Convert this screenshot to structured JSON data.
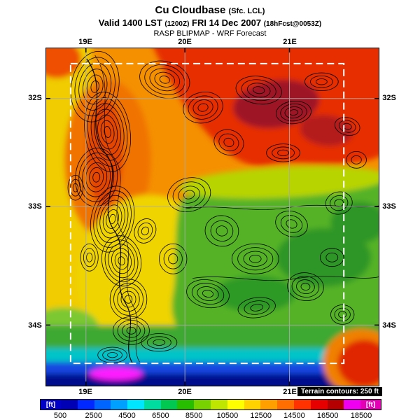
{
  "header": {
    "title_main": "Cu Cloudbase",
    "title_paren": "(Sfc. LCL)",
    "valid_prefix": "Valid 1400 LST",
    "valid_z": "(1200Z)",
    "valid_date": "FRI 14 Dec 2007",
    "valid_fcst": "(18hFcst@0053Z)",
    "model_line": "RASP BLIPMAP - WRF Forecast"
  },
  "map": {
    "lon_labels": [
      "19E",
      "20E",
      "21E"
    ],
    "lat_labels": [
      "32S",
      "33S",
      "34S"
    ],
    "terrain_note": "Terrain contours: 250 ft"
  },
  "colorbar": {
    "unit_label": "[ft]",
    "tick_labels": [
      "500",
      "2500",
      "4500",
      "6500",
      "8500",
      "10500",
      "12500",
      "14500",
      "16500",
      "18500"
    ],
    "left_cap_color": "#0000C8",
    "right_cap_color": "#E400B4",
    "cell_colors": [
      "#0000B4",
      "#0028FF",
      "#0064FF",
      "#00A0FF",
      "#00E6FF",
      "#00DCA0",
      "#00C850",
      "#28BE00",
      "#78D200",
      "#BEE600",
      "#FFFF00",
      "#FFD200",
      "#FFA000",
      "#FF6E00",
      "#FF3200",
      "#E60000",
      "#B40000",
      "#F000F0"
    ]
  },
  "chart_data": {
    "type": "heatmap",
    "title": "Cu Cloudbase (Sfc. LCL)",
    "valid": "Valid 1400 LST (1200Z) FRI 14 Dec 2007 (18hFcst@0053Z)",
    "source": "RASP BLIPMAP - WRF Forecast",
    "units": "ft",
    "colorbar_range": [
      500,
      18500
    ],
    "colorbar_step": 1000,
    "colorbar_ticks": [
      500,
      2500,
      4500,
      6500,
      8500,
      10500,
      12500,
      14500,
      16500,
      18500
    ],
    "x_tick_labels": [
      "19E",
      "20E",
      "21E"
    ],
    "y_tick_labels": [
      "32S",
      "33S",
      "34S"
    ],
    "terrain_contour_interval": "250 ft",
    "legend_position": "bottom"
  }
}
